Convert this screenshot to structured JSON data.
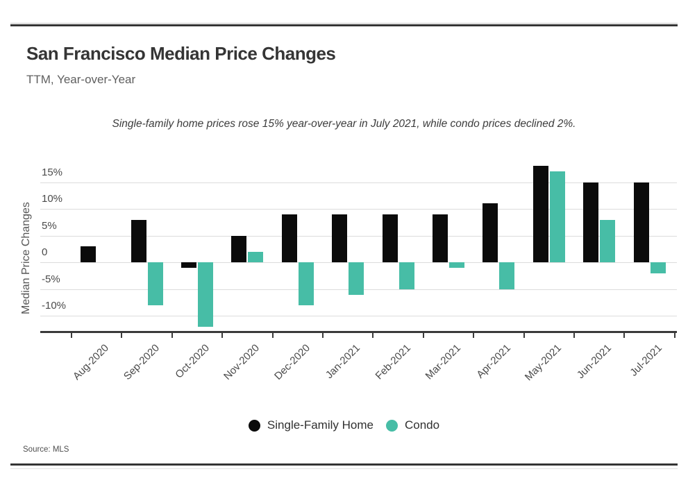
{
  "header": {
    "title": "San Francisco Median Price Changes",
    "subtitle": "TTM, Year-over-Year"
  },
  "annotation": {
    "text": "Single-family home prices rose 15% year-over-year in July 2021, while condo prices declined 2%."
  },
  "chart_data": {
    "type": "bar",
    "title": "San Francisco Median Price Changes",
    "subtitle": "TTM, Year-over-Year",
    "categories": [
      "Aug-2020",
      "Sep-2020",
      "Oct-2020",
      "Nov-2020",
      "Dec-2020",
      "Jan-2021",
      "Feb-2021",
      "Mar-2021",
      "Apr-2021",
      "May-2021",
      "Jun-2021",
      "Jul-2021"
    ],
    "series": [
      {
        "name": "Single-Family Home",
        "color": "#0b0b0b",
        "values": [
          3,
          8,
          -1,
          5,
          9,
          9,
          9,
          9,
          11,
          18,
          15,
          15
        ]
      },
      {
        "name": "Condo",
        "color": "#47bda6",
        "values": [
          0,
          -8,
          -12,
          2,
          -8,
          -6,
          -5,
          -1,
          -5,
          17,
          8,
          -2
        ]
      }
    ],
    "ylabel": "Median Price Changes",
    "xlabel": "",
    "y_ticks": [
      {
        "value": 15,
        "label": "15%"
      },
      {
        "value": 10,
        "label": "10%"
      },
      {
        "value": 5,
        "label": "5%"
      },
      {
        "value": 0,
        "label": "0"
      },
      {
        "value": -5,
        "label": "-5%"
      },
      {
        "value": -10,
        "label": "-10%"
      }
    ],
    "ylim": [
      -12.8,
      20
    ],
    "grid": true,
    "baseline": 0,
    "legend_position": "bottom",
    "x_tick_rotation": -45,
    "unit": "percent"
  },
  "footer": {
    "source": "Source: MLS"
  }
}
